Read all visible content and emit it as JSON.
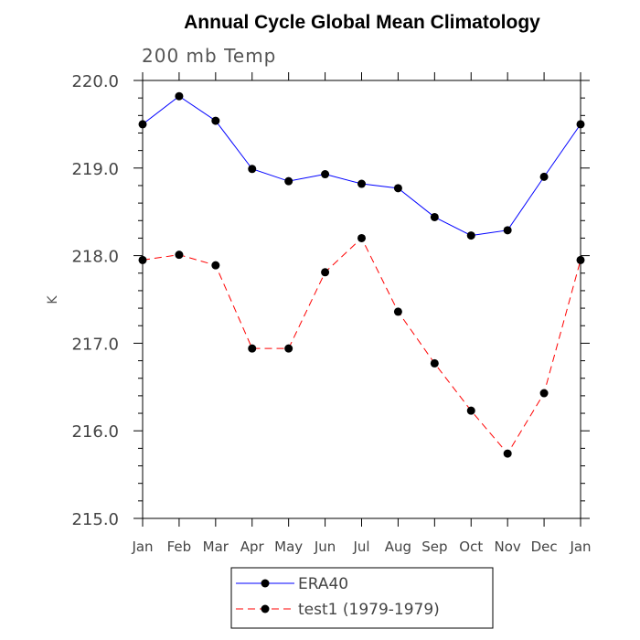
{
  "chart_data": {
    "type": "line",
    "title": "Annual Cycle Global Mean Climatology",
    "subtitle": "200 mb Temp",
    "xlabel": "",
    "ylabel": "K",
    "categories": [
      "Jan",
      "Feb",
      "Mar",
      "Apr",
      "May",
      "Jun",
      "Jul",
      "Aug",
      "Sep",
      "Oct",
      "Nov",
      "Dec",
      "Jan"
    ],
    "yticks": [
      "215.0",
      "216.0",
      "217.0",
      "218.0",
      "219.0",
      "220.0"
    ],
    "ylim": [
      215.0,
      220.0
    ],
    "grid": false,
    "legend_position": "bottom-center",
    "series": [
      {
        "name": "ERA40",
        "color": "#0000ff",
        "dash": "solid",
        "values": [
          219.5,
          219.82,
          219.54,
          218.99,
          218.85,
          218.93,
          218.82,
          218.77,
          218.44,
          218.23,
          218.29,
          218.9,
          219.5
        ]
      },
      {
        "name": "test1 (1979-1979)",
        "color": "#ff0000",
        "dash": "dashed",
        "values": [
          217.95,
          218.01,
          217.89,
          216.94,
          216.94,
          217.81,
          218.2,
          217.36,
          216.77,
          216.23,
          215.74,
          216.43,
          217.95
        ]
      }
    ]
  }
}
